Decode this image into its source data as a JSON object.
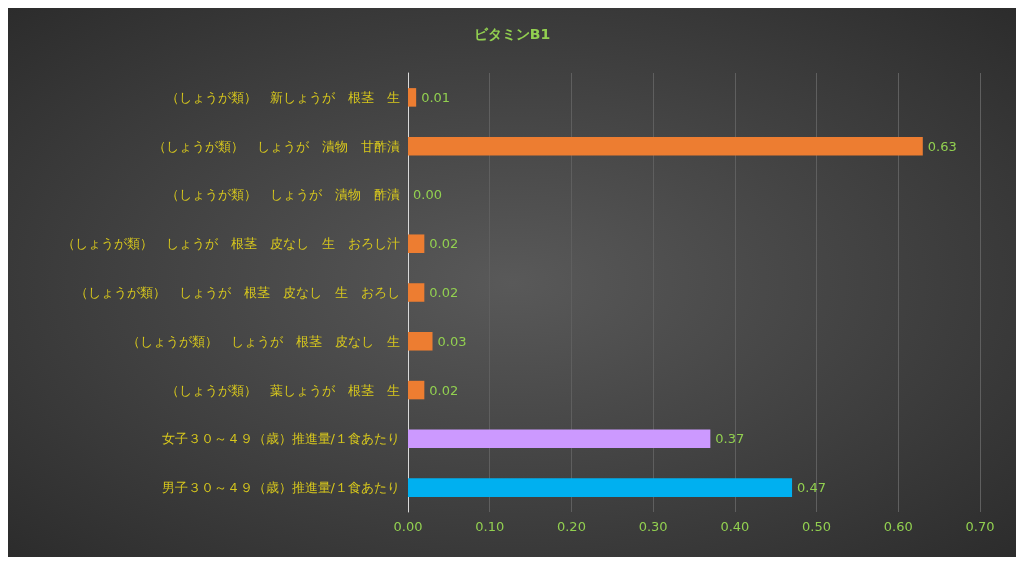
{
  "chart_data": {
    "type": "bar",
    "orientation": "horizontal",
    "title": "ビタミンB1",
    "categories": [
      "（しょうが類）　新しょうが　根茎　生",
      "（しょうが類）　しょうが　漬物　甘酢漬",
      "（しょうが類）　しょうが　漬物　酢漬",
      "（しょうが類）　しょうが　根茎　皮なし　生　おろし汁",
      "（しょうが類）　しょうが　根茎　皮なし　生　おろし",
      "（しょうが類）　しょうが　根茎　皮なし　生",
      "（しょうが類）　葉しょうが　根茎　生",
      "女子３０～４９（歳）推進量/１食あたり",
      "男子３０～４９（歳）推進量/１食あたり"
    ],
    "values": [
      0.01,
      0.63,
      0.0,
      0.02,
      0.02,
      0.03,
      0.02,
      0.37,
      0.47
    ],
    "value_labels": [
      "0.01",
      "0.63",
      "0.00",
      "0.02",
      "0.02",
      "0.03",
      "0.02",
      "0.37",
      "0.47"
    ],
    "colors": [
      "#ed7d31",
      "#ed7d31",
      "#ed7d31",
      "#ed7d31",
      "#ed7d31",
      "#ed7d31",
      "#ed7d31",
      "#cc99ff",
      "#00b0f0"
    ],
    "xlim": [
      0,
      0.7
    ],
    "xticks": [
      {
        "value": 0,
        "label": "0.00"
      },
      {
        "value": 0.1,
        "label": "0.10"
      },
      {
        "value": 0.2,
        "label": "0.20"
      },
      {
        "value": 0.3,
        "label": "0.30"
      },
      {
        "value": 0.4,
        "label": "0.40"
      },
      {
        "value": 0.5,
        "label": "0.50"
      },
      {
        "value": 0.6,
        "label": "0.60"
      },
      {
        "value": 0.7,
        "label": "0.70"
      }
    ],
    "grid": "x"
  }
}
